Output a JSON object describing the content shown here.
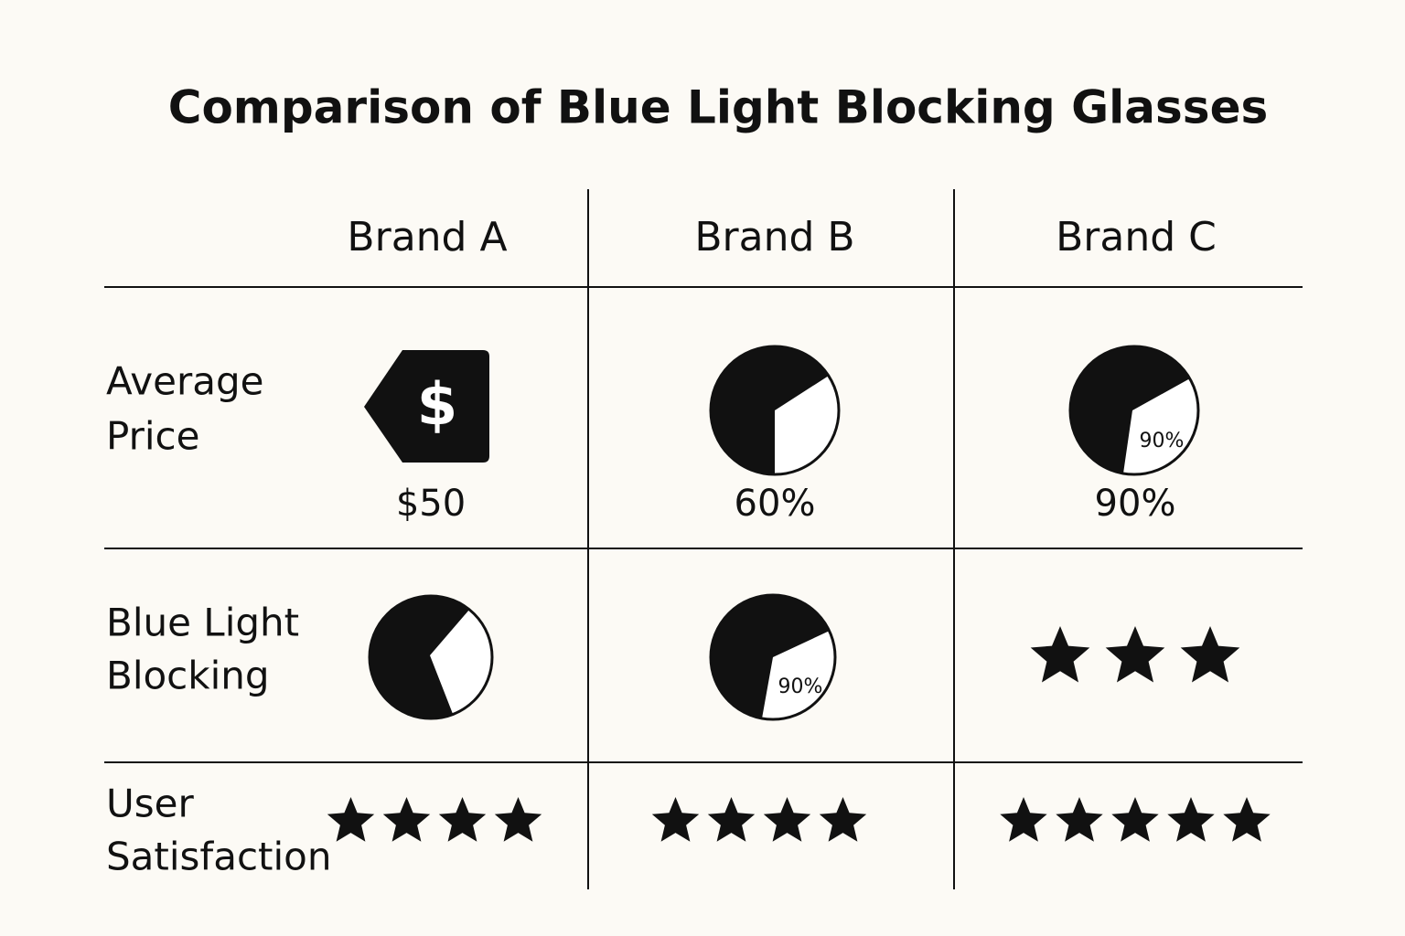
{
  "title": "Comparison of Blue Light Blocking Glasses",
  "columns": [
    "Brand A",
    "Brand B",
    "Brand C"
  ],
  "rows": [
    {
      "label": [
        "Average",
        "Price"
      ],
      "cells": [
        {
          "text": "$50",
          "icon": "$"
        },
        {
          "text": "60%"
        },
        {
          "text": "90%",
          "icon_text": "90%"
        }
      ]
    },
    {
      "label": [
        "Blue Light",
        "Blocking"
      ],
      "cells": [
        {
          "icon": "pie"
        },
        {
          "icon_text": "90%"
        },
        {
          "stars": 3
        }
      ]
    },
    {
      "label": [
        "User",
        "Satisfaction"
      ],
      "cells": [
        {
          "stars": 4
        },
        {
          "stars": 4
        },
        {
          "stars": 5
        }
      ]
    }
  ]
}
